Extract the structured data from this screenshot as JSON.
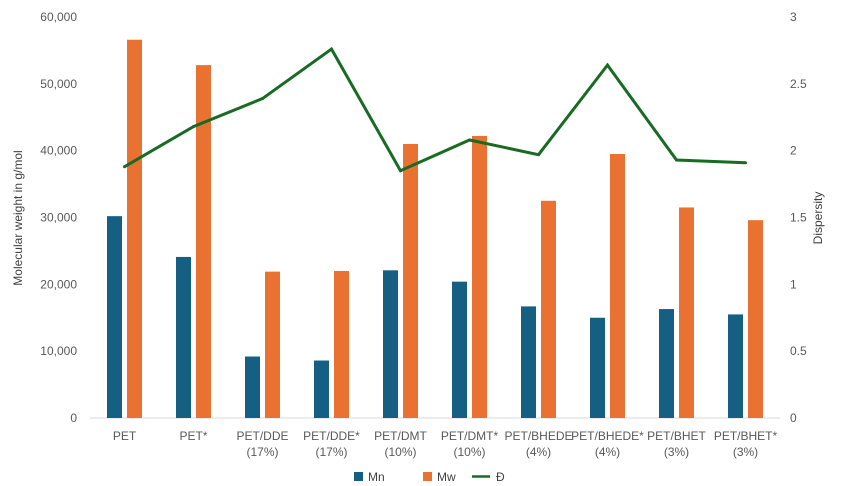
{
  "chart_data": {
    "type": "bar",
    "categories": [
      [
        "PET"
      ],
      [
        "PET*"
      ],
      [
        "PET/DDE",
        "(17%)"
      ],
      [
        "PET/DDE*",
        "(17%)"
      ],
      [
        "PET/DMT",
        "(10%)"
      ],
      [
        "PET/DMT*",
        "(10%)"
      ],
      [
        "PET/BHEDE",
        "(4%)"
      ],
      [
        "PET/BHEDE*",
        "(4%)"
      ],
      [
        "PET/BHET",
        "(3%)"
      ],
      [
        "PET/BHET*",
        "(3%)"
      ]
    ],
    "series": [
      {
        "name": "Mn",
        "kind": "bar",
        "axis": "left",
        "color": "#156082",
        "values": [
          30200,
          24100,
          9200,
          8600,
          22100,
          20400,
          16700,
          15000,
          16300,
          15500
        ]
      },
      {
        "name": "Mw",
        "kind": "bar",
        "axis": "left",
        "color": "#e97132",
        "values": [
          56600,
          52800,
          21900,
          22000,
          41000,
          42200,
          32500,
          39500,
          31500,
          29600
        ]
      },
      {
        "name": "Đ",
        "kind": "line",
        "axis": "right",
        "color": "#196b24",
        "values": [
          1.88,
          2.18,
          2.39,
          2.76,
          1.85,
          2.08,
          1.97,
          2.64,
          1.93,
          1.91
        ]
      }
    ],
    "ylabel": "Molecular weight in g/mol",
    "y2label": "Dispersity",
    "ylim": [
      0,
      60000
    ],
    "y2lim": [
      0,
      3
    ],
    "yticks": [
      "0",
      "10,000",
      "20,000",
      "30,000",
      "40,000",
      "50,000",
      "60,000"
    ],
    "y2ticks": [
      "0",
      "0.5",
      "1",
      "1.5",
      "2",
      "2.5",
      "3"
    ],
    "grid": false,
    "legend": "bottom"
  }
}
